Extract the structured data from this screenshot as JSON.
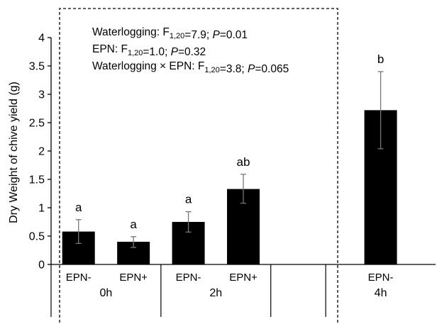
{
  "chart_data": {
    "type": "bar",
    "ylabel": "Dry Weight of chive yield (g)",
    "ylim": [
      0,
      4
    ],
    "yticks": [
      "0",
      "0.5",
      "1",
      "1.5",
      "2",
      "2.5",
      "3",
      "3.5",
      "4"
    ],
    "bar_color": "#000000",
    "categories": [
      "EPN-",
      "EPN+",
      "EPN-",
      "EPN+",
      "EPN-"
    ],
    "groups": [
      {
        "label": "0h",
        "bars": [
          0,
          1
        ]
      },
      {
        "label": "2h",
        "bars": [
          2,
          3
        ]
      },
      {
        "label": "",
        "bars": []
      },
      {
        "label": "4h",
        "bars": [
          4
        ]
      }
    ],
    "bars": [
      {
        "category": "EPN-",
        "value": 0.58,
        "err_low": 0.37,
        "err_high": 0.79,
        "letter": "a"
      },
      {
        "category": "EPN+",
        "value": 0.4,
        "err_low": 0.3,
        "err_high": 0.49,
        "letter": "a"
      },
      {
        "category": "EPN-",
        "value": 0.75,
        "err_low": 0.57,
        "err_high": 0.93,
        "letter": "a"
      },
      {
        "category": "EPN+",
        "value": 1.33,
        "err_low": 1.08,
        "err_high": 1.59,
        "letter": "ab"
      },
      {
        "category": "EPN-",
        "value": 2.72,
        "err_low": 2.04,
        "err_high": 3.4,
        "letter": "b"
      }
    ],
    "annotations": [
      [
        {
          "t": "Waterlogging: F"
        },
        {
          "t": "1,20",
          "sub": true
        },
        {
          "t": "=7.9; "
        },
        {
          "t": "P",
          "it": true
        },
        {
          "t": "=0.01"
        }
      ],
      [
        {
          "t": "EPN: F"
        },
        {
          "t": "1,20",
          "sub": true
        },
        {
          "t": "=1.0; "
        },
        {
          "t": "P",
          "it": true
        },
        {
          "t": "=0.32"
        }
      ],
      [
        {
          "t": "Waterlogging × EPN: F"
        },
        {
          "t": "1,20",
          "sub": true
        },
        {
          "t": "=3.8; "
        },
        {
          "t": "P",
          "it": true
        },
        {
          "t": "=0.065"
        }
      ]
    ]
  }
}
